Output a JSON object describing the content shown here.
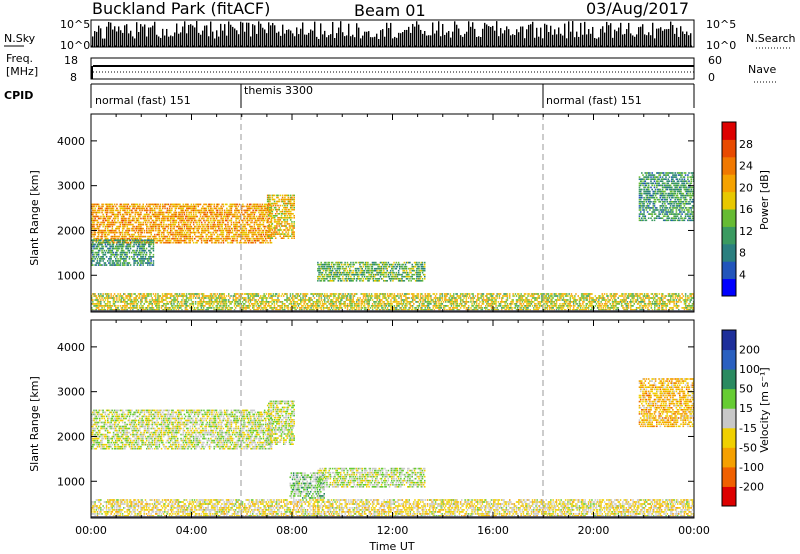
{
  "header": {
    "station": "Buckland Park (fitACF)",
    "beam": "Beam 01",
    "date": "03/Aug/2017"
  },
  "sky_panel": {
    "left_label": "N.Sky",
    "right_label": "N.Search",
    "ticks_left": [
      "10^5",
      "10^0"
    ],
    "ticks_right": [
      "10^5",
      "10^0"
    ]
  },
  "freq_panel": {
    "left_label_1": "Freq.",
    "left_label_2": "[MHz]",
    "right_label": "Nave",
    "ticks_left": [
      "18",
      "8"
    ],
    "ticks_right": [
      "60",
      "0"
    ]
  },
  "cpid": {
    "label": "CPID",
    "segments": [
      {
        "text": "normal (fast) 151",
        "start_hour": 0
      },
      {
        "text": "themis 3300",
        "start_hour": 6
      },
      {
        "text": "normal (fast) 151",
        "start_hour": 18
      }
    ]
  },
  "axes": {
    "ylabel": "Slant Range [km]",
    "xlabel": "Time UT",
    "xticks": [
      "00:00",
      "04:00",
      "08:00",
      "12:00",
      "16:00",
      "20:00",
      "00:00"
    ],
    "yticks": [
      "1000",
      "2000",
      "3000",
      "4000"
    ]
  },
  "power_colorbar": {
    "label": "Power [dB]",
    "ticks": [
      "4",
      "8",
      "12",
      "16",
      "20",
      "24",
      "28"
    ]
  },
  "velocity_colorbar": {
    "label": "Velocity [m s⁻¹]",
    "ticks": [
      "200",
      "100",
      "50",
      "15",
      "-15",
      "-50",
      "-100",
      "-200"
    ]
  },
  "colors": {
    "power_scale": [
      "#0000ff",
      "#2255bb",
      "#2a7f7f",
      "#3a9a60",
      "#66bb33",
      "#e8c800",
      "#f5a200",
      "#f07800",
      "#e84a00",
      "#dd0000"
    ],
    "velocity_scale": [
      "#1e2f9a",
      "#2a60c0",
      "#2a8a60",
      "#66cc33",
      "#c8c8c8",
      "#f0d000",
      "#f5a000",
      "#f06000",
      "#dd0000"
    ]
  },
  "chart_data": [
    {
      "type": "heatmap",
      "title": "Power",
      "xlabel": "Time UT",
      "ylabel": "Slant Range [km]",
      "xlim_hours": [
        0,
        24
      ],
      "ylim_km": [
        180,
        4600
      ],
      "colorbar_range_db": [
        0,
        30
      ],
      "echo_regions": [
        {
          "t_start": 0,
          "t_end": 7.2,
          "r_low": 1700,
          "r_high": 2600,
          "value_db": 20
        },
        {
          "t_start": 0,
          "t_end": 2.5,
          "r_low": 1200,
          "r_high": 1800,
          "value_db": 10
        },
        {
          "t_start": 7.0,
          "t_end": 8.1,
          "r_low": 1800,
          "r_high": 2800,
          "value_db": 18
        },
        {
          "t_start": 9.0,
          "t_end": 13.3,
          "r_low": 850,
          "r_high": 1300,
          "value_db": 12
        },
        {
          "t_start": 0,
          "t_end": 24,
          "r_low": 200,
          "r_high": 600,
          "value_db": 16
        },
        {
          "t_start": 21.8,
          "t_end": 24,
          "r_low": 2200,
          "r_high": 3300,
          "value_db": 10
        }
      ]
    },
    {
      "type": "heatmap",
      "title": "Velocity",
      "xlabel": "Time UT",
      "ylabel": "Slant Range [km]",
      "xlim_hours": [
        0,
        24
      ],
      "ylim_km": [
        180,
        4600
      ],
      "colorbar_range_ms": [
        -250,
        250
      ],
      "echo_regions": [
        {
          "t_start": 0,
          "t_end": 7.2,
          "r_low": 1700,
          "r_high": 2600,
          "value_ms": 0
        },
        {
          "t_start": 7.0,
          "t_end": 8.1,
          "r_low": 1800,
          "r_high": 2800,
          "value_ms": 0
        },
        {
          "t_start": 9.0,
          "t_end": 13.3,
          "r_low": 850,
          "r_high": 1300,
          "value_ms": 10
        },
        {
          "t_start": 7.9,
          "t_end": 9.3,
          "r_low": 600,
          "r_high": 1200,
          "value_ms": 40
        },
        {
          "t_start": 0,
          "t_end": 24,
          "r_low": 200,
          "r_high": 600,
          "value_ms": -30
        },
        {
          "t_start": 21.8,
          "t_end": 24,
          "r_low": 2200,
          "r_high": 3300,
          "value_ms": -80
        }
      ]
    }
  ]
}
